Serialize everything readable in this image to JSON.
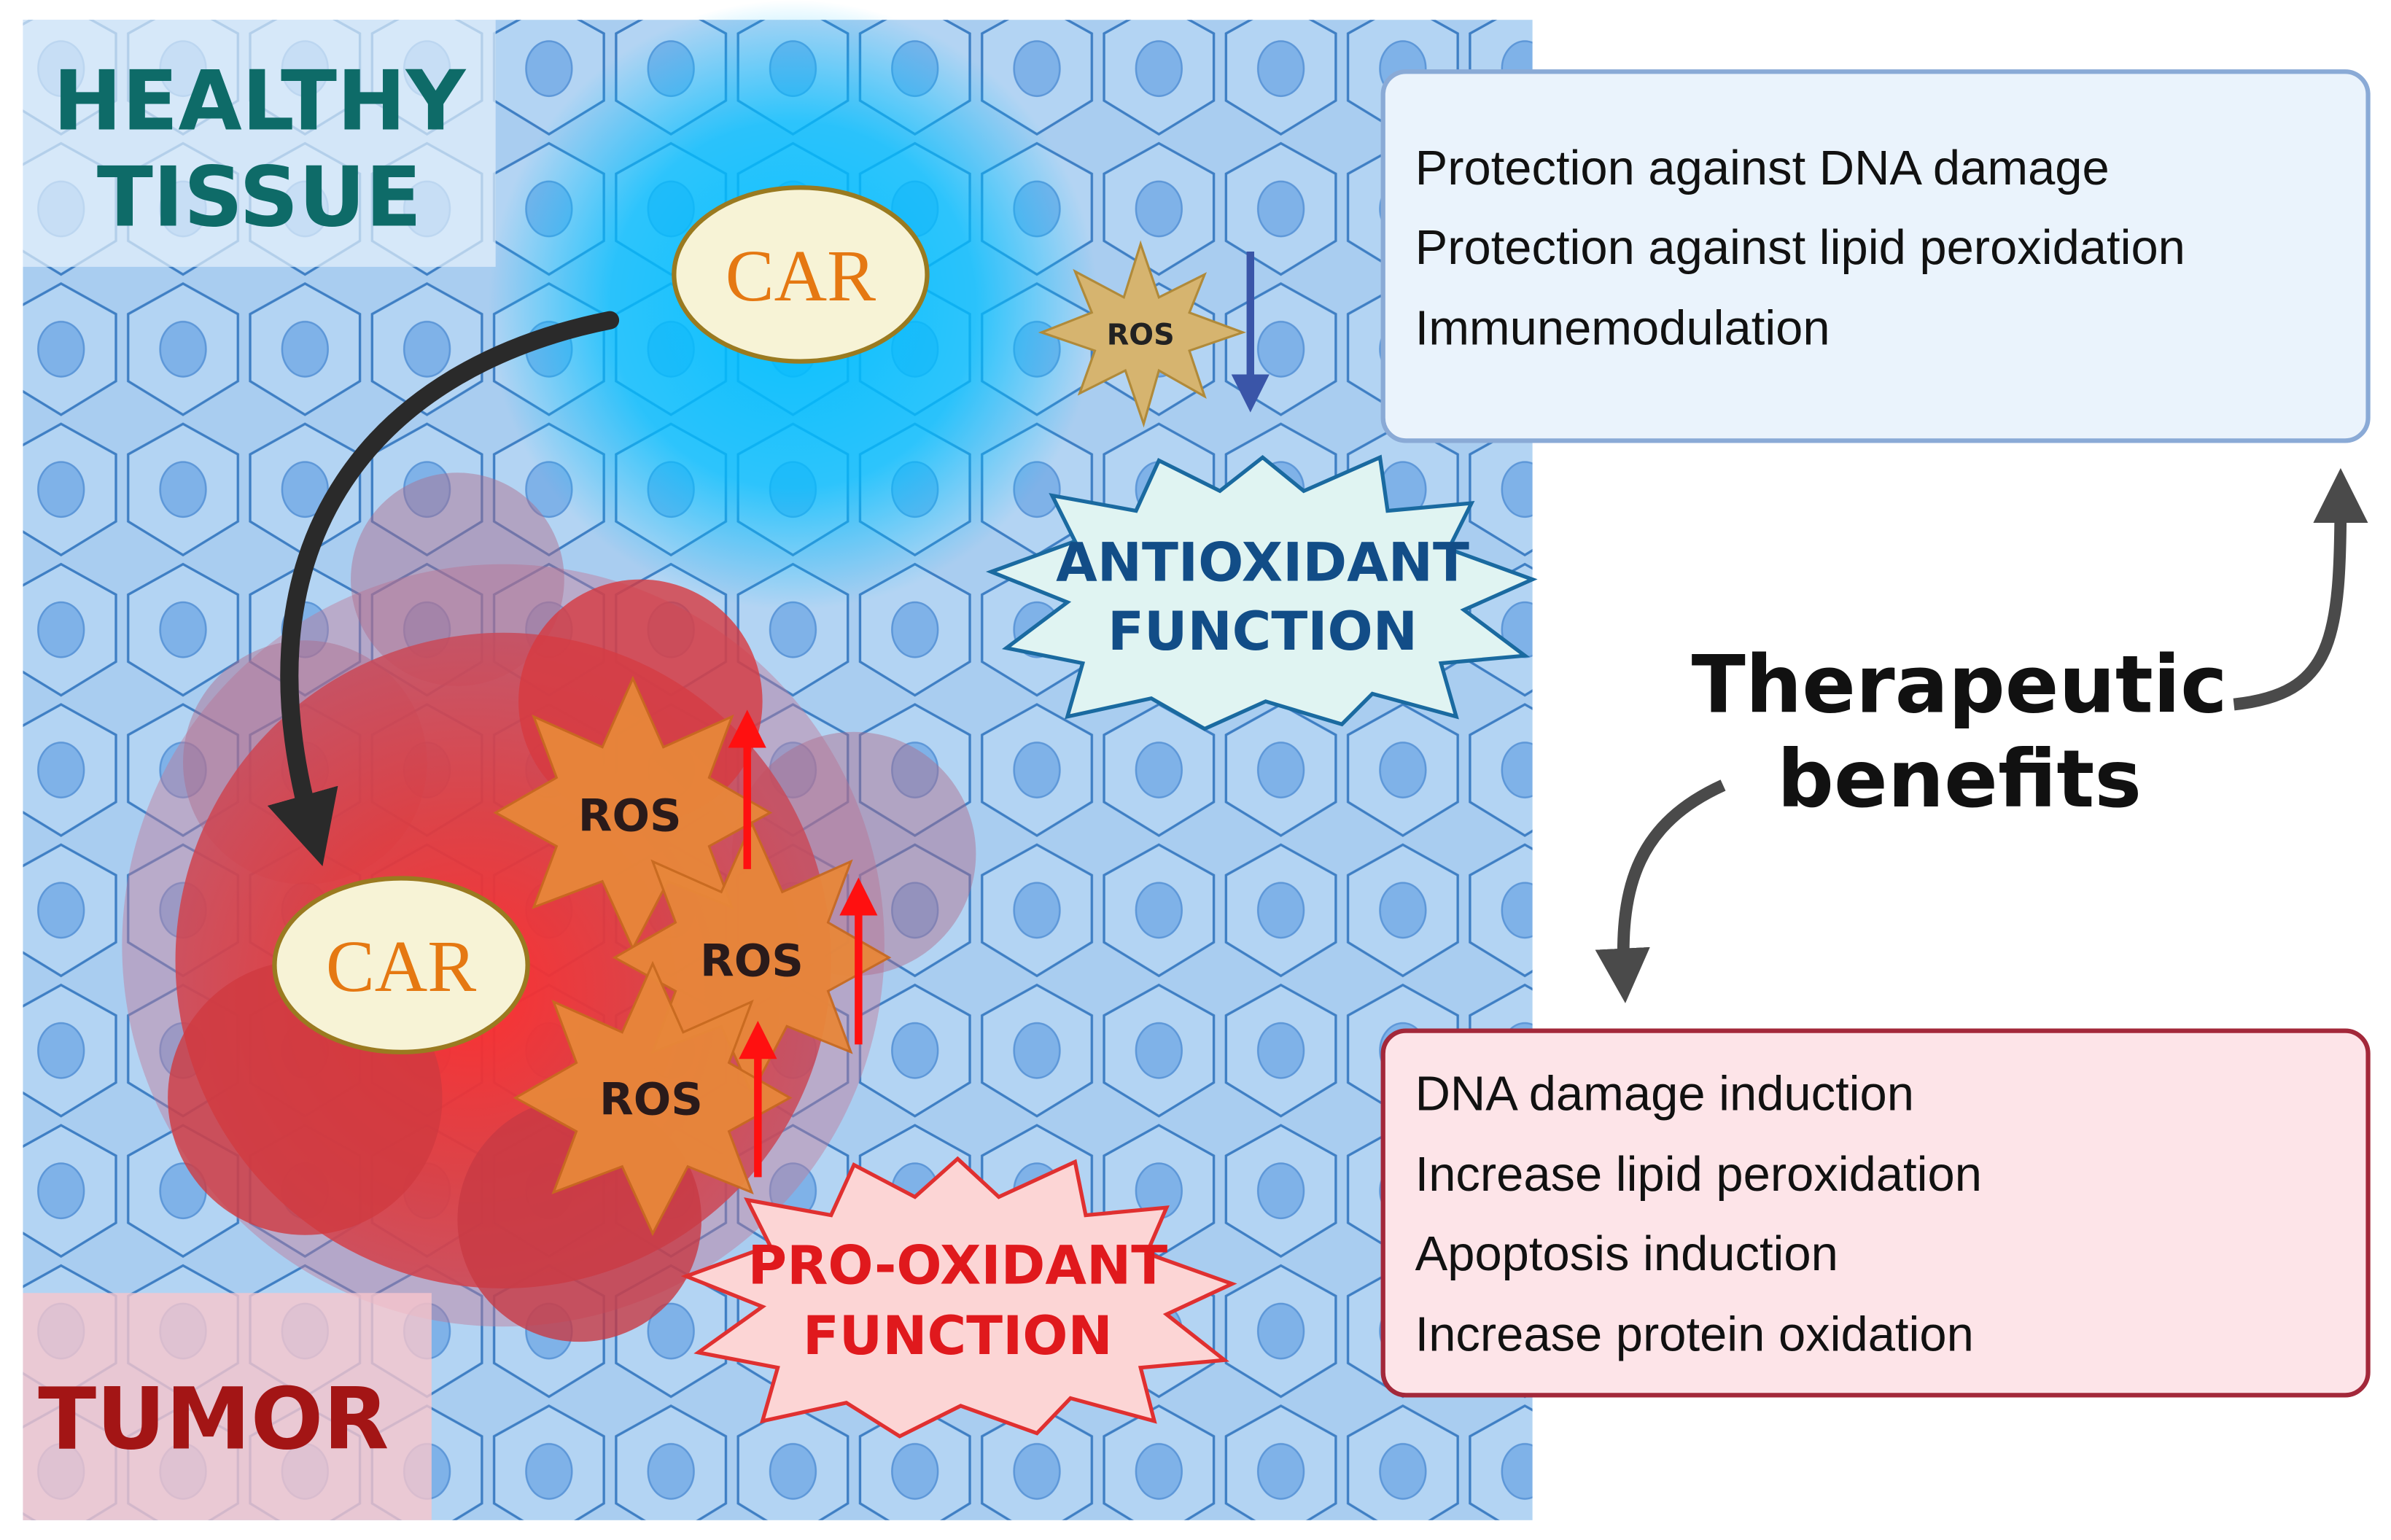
{
  "labels": {
    "healthy_line1": "HEALTHY",
    "healthy_line2": "TISSUE",
    "tumor": "TUMOR"
  },
  "car_top": "CAR",
  "car_bottom": "CAR",
  "ros": [
    "ROS",
    "ROS",
    "ROS",
    "ROS"
  ],
  "antioxidant": {
    "line1": "ANTIOXIDANT",
    "line2": "FUNCTION"
  },
  "prooxidant": {
    "line1": "PRO-OXIDANT",
    "line2": "FUNCTION"
  },
  "therapeutic": {
    "line1": "Therapeutic",
    "line2": "benefits"
  },
  "healthy_benefits": [
    "Protection against DNA damage",
    "Protection against lipid peroxidation",
    "Immunemodulation"
  ],
  "tumor_benefits": [
    "DNA damage induction",
    "Increase lipid peroxidation",
    "Apoptosis induction",
    "Increase protein oxidation"
  ],
  "colors": {
    "tissue_blue": "#a9cdf0",
    "glow_blue": "#00bfff",
    "healthy_teal": "#0e6b68",
    "tumor_red": "#a31515",
    "car_orange": "#e57812",
    "antioxidant_navy": "#124d87",
    "prooxidant_red": "#e0191d"
  }
}
